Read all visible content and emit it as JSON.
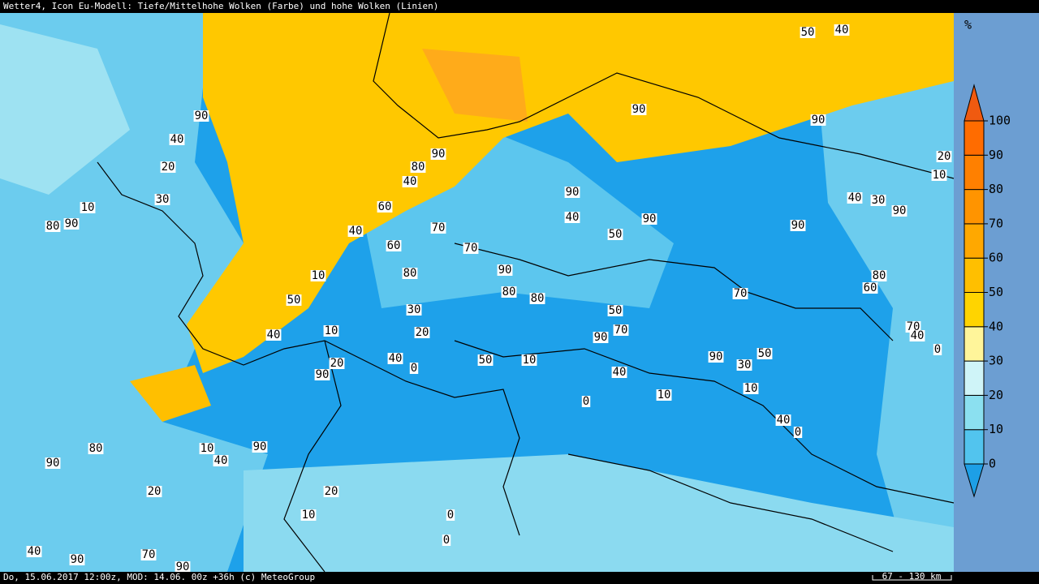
{
  "header": {
    "title": "Wetter4, Icon Eu-Modell: Tiefe/Mittelhohe Wolken (Farbe) und hohe Wolken (Linien)"
  },
  "legend": {
    "unit": "%",
    "ticks": [
      0,
      10,
      20,
      30,
      40,
      50,
      60,
      70,
      80,
      90,
      100
    ],
    "colors": [
      "#52c4ee",
      "#8be0f0",
      "#cff4f8",
      "#fff59a",
      "#ffd400",
      "#ffbf00",
      "#ffa800",
      "#ff9400",
      "#ff8000",
      "#ff6c00"
    ],
    "under_color": "#1d9fe6",
    "over_color": "#f05a10"
  },
  "map": {
    "contour_labels": [
      "50",
      "40",
      "90",
      "90",
      "90",
      "80",
      "40",
      "90",
      "60",
      "40",
      "90",
      "70",
      "50",
      "90",
      "40",
      "60",
      "70",
      "90",
      "80",
      "10",
      "70",
      "80",
      "80",
      "50",
      "30",
      "50",
      "10",
      "20",
      "40",
      "90",
      "70",
      "60",
      "80",
      "40",
      "50",
      "10",
      "90",
      "20",
      "0",
      "40",
      "90",
      "50",
      "30",
      "10",
      "0",
      "10",
      "40",
      "0",
      "90",
      "10",
      "40",
      "80",
      "90",
      "20",
      "20",
      "10",
      "0",
      "0",
      "70",
      "40",
      "90",
      "90",
      "20",
      "40",
      "90",
      "10",
      "80",
      "90",
      "30",
      "20",
      "10",
      "30",
      "90",
      "40",
      "70",
      "40",
      "0"
    ]
  },
  "footer": {
    "timestamp": "Do, 15.06.2017 12:00z, MOD: 14.06. 00z +36h (c) MeteoGroup",
    "scale": "67 - 130 km"
  }
}
